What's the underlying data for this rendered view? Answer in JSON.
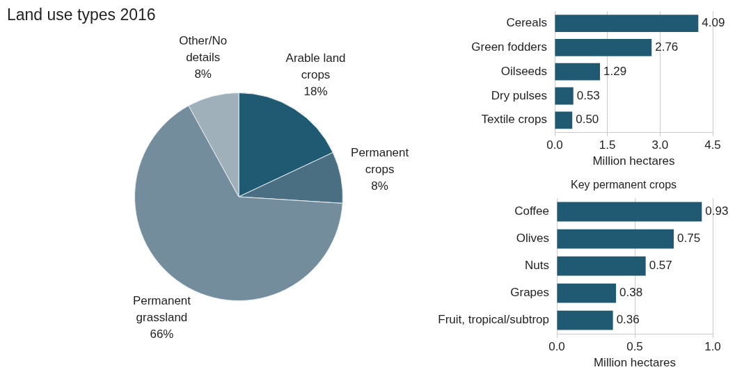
{
  "chart_data": [
    {
      "type": "pie",
      "title": "Land use types 2016",
      "categories": [
        "Arable land crops",
        "Permanent crops",
        "Permanent grassland",
        "Other/No details"
      ],
      "values": [
        18,
        8,
        66,
        8
      ],
      "value_labels": [
        "18%",
        "8%",
        "66%",
        "8%"
      ],
      "colors": [
        "#1f5a72",
        "#4a6f82",
        "#748d9c",
        "#9fb0bb"
      ]
    },
    {
      "type": "bar",
      "orientation": "horizontal",
      "categories": [
        "Cereals",
        "Green fodders",
        "Oilseeds",
        "Dry pulses",
        "Textile crops"
      ],
      "values": [
        4.09,
        2.76,
        1.29,
        0.53,
        0.5
      ],
      "value_labels": [
        "4.09",
        "2.76",
        "1.29",
        "0.53",
        "0.50"
      ],
      "color": "#1f5a72",
      "xlabel": "Million hectares",
      "xlim": [
        0,
        4.5
      ],
      "xticks": [
        {
          "value": 0,
          "label": "0.0"
        },
        {
          "value": 1.5,
          "label": "1.5"
        },
        {
          "value": 3,
          "label": "3.0"
        },
        {
          "value": 4.5,
          "label": "4.5"
        }
      ],
      "grid": "x"
    },
    {
      "type": "bar",
      "orientation": "horizontal",
      "title": "Key permanent crops",
      "categories": [
        "Coffee",
        "Olives",
        "Nuts",
        "Grapes",
        "Fruit, tropical/subtrop"
      ],
      "values": [
        0.93,
        0.75,
        0.57,
        0.38,
        0.36
      ],
      "value_labels": [
        "0.93",
        "0.75",
        "0.57",
        "0.38",
        "0.36"
      ],
      "color": "#1f5a72",
      "xlabel": "Million hectares",
      "xlim": [
        0,
        1
      ],
      "xticks": [
        {
          "value": 0,
          "label": "0.0"
        },
        {
          "value": 0.5,
          "label": "0.5"
        },
        {
          "value": 1,
          "label": "1.0"
        }
      ],
      "grid": "x"
    }
  ]
}
